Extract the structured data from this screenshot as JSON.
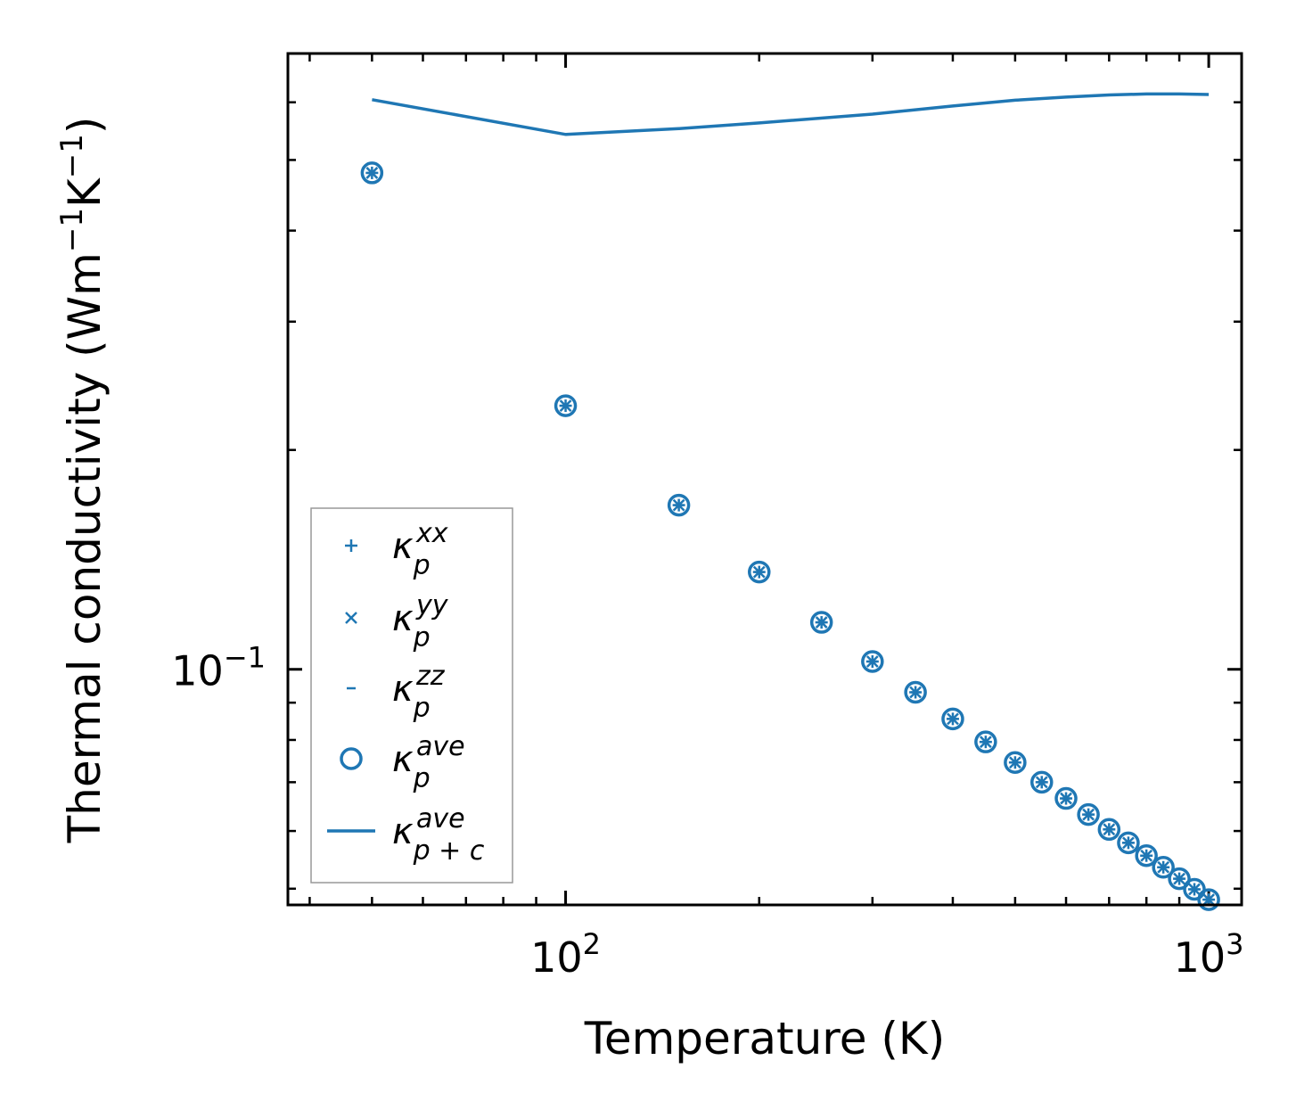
{
  "chart_data": {
    "type": "scatter",
    "title": "",
    "xlabel": "Temperature (K)",
    "ylabel": {
      "base": "Thermal conductivity (Wm",
      "sup1": "−1",
      "mid": "K",
      "sup2": "−1",
      "end": ")"
    },
    "xscale": "log",
    "yscale": "log",
    "xlim": [
      37,
      1125
    ],
    "ylim": [
      0.0475,
      0.7
    ],
    "xticks": [
      {
        "value": 100,
        "base": "10",
        "exp": "2"
      },
      {
        "value": 1000,
        "base": "10",
        "exp": "3"
      }
    ],
    "yticks": [
      {
        "value": 0.1,
        "base": "10",
        "exp": "−1"
      }
    ],
    "color": "#1f77b4",
    "x": [
      50,
      100,
      150,
      200,
      250,
      300,
      350,
      400,
      450,
      500,
      550,
      600,
      650,
      700,
      750,
      800,
      850,
      900,
      950,
      1000
    ],
    "series": [
      {
        "name": "kappa_p^xx",
        "marker": "plus",
        "values": [
          0.48,
          0.23,
          0.168,
          0.136,
          0.116,
          0.1025,
          0.093,
          0.0855,
          0.0795,
          0.0745,
          0.07,
          0.0665,
          0.0632,
          0.0603,
          0.0578,
          0.0555,
          0.0535,
          0.0516,
          0.0499,
          0.0483
        ]
      },
      {
        "name": "kappa_p^yy",
        "marker": "x",
        "values": [
          0.48,
          0.23,
          0.168,
          0.136,
          0.116,
          0.1025,
          0.093,
          0.0855,
          0.0795,
          0.0745,
          0.07,
          0.0665,
          0.0632,
          0.0603,
          0.0578,
          0.0555,
          0.0535,
          0.0516,
          0.0499,
          0.0483
        ]
      },
      {
        "name": "kappa_p^zz",
        "marker": "dash",
        "values": [
          0.48,
          0.23,
          0.168,
          0.136,
          0.116,
          0.1025,
          0.093,
          0.0855,
          0.0795,
          0.0745,
          0.07,
          0.0665,
          0.0632,
          0.0603,
          0.0578,
          0.0555,
          0.0535,
          0.0516,
          0.0499,
          0.0483
        ]
      },
      {
        "name": "kappa_p^ave",
        "marker": "circle",
        "values": [
          0.48,
          0.23,
          0.168,
          0.136,
          0.116,
          0.1025,
          0.093,
          0.0855,
          0.0795,
          0.0745,
          0.07,
          0.0665,
          0.0632,
          0.0603,
          0.0578,
          0.0555,
          0.0535,
          0.0516,
          0.0499,
          0.0483
        ]
      },
      {
        "name": "kappa_{p+c}^ave",
        "marker": "line",
        "x": [
          50,
          100,
          150,
          200,
          300,
          400,
          500,
          600,
          700,
          800,
          900,
          1000
        ],
        "values": [
          0.605,
          0.542,
          0.552,
          0.562,
          0.578,
          0.593,
          0.604,
          0.61,
          0.614,
          0.616,
          0.616,
          0.615
        ]
      }
    ],
    "legend": {
      "position": "lower-left",
      "entries": [
        {
          "marker": "plus",
          "symbol": "κ",
          "sub": "p",
          "sup": "xx"
        },
        {
          "marker": "x",
          "symbol": "κ",
          "sub": "p",
          "sup": "yy"
        },
        {
          "marker": "dash",
          "symbol": "κ",
          "sub": "p",
          "sup": "zz"
        },
        {
          "marker": "circle",
          "symbol": "κ",
          "sub": "p",
          "sup": "ave"
        },
        {
          "marker": "line",
          "symbol": "κ",
          "sub": "p + c",
          "sup": "ave"
        }
      ]
    }
  }
}
